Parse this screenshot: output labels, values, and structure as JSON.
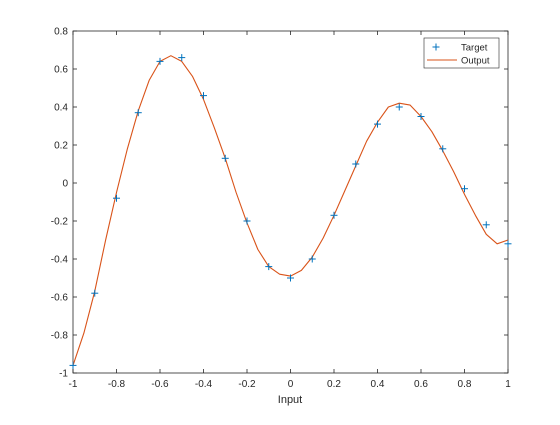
{
  "chart_data": {
    "type": "line",
    "title": "",
    "xlabel": "Input",
    "ylabel": "",
    "xlim": [
      -1,
      1
    ],
    "ylim": [
      -1,
      0.8
    ],
    "grid": false,
    "legend_position": "top-right",
    "x_ticks": [
      -1,
      -0.8,
      -0.6,
      -0.4,
      -0.2,
      0,
      0.2,
      0.4,
      0.6,
      0.8,
      1
    ],
    "x_tick_labels": [
      "-1",
      "-0.8",
      "-0.6",
      "-0.4",
      "-0.2",
      "0",
      "0.2",
      "0.4",
      "0.6",
      "0.8",
      "1"
    ],
    "y_ticks": [
      -1,
      -0.8,
      -0.6,
      -0.4,
      -0.2,
      0,
      0.2,
      0.4,
      0.6,
      0.8
    ],
    "y_tick_labels": [
      "-1",
      "-0.8",
      "-0.6",
      "-0.4",
      "-0.2",
      "0",
      "0.2",
      "0.4",
      "0.6",
      "0.8"
    ],
    "series": [
      {
        "name": "Target",
        "style": "markers",
        "marker": "plus",
        "color": "#0072BD",
        "x": [
          -1,
          -0.9,
          -0.8,
          -0.7,
          -0.6,
          -0.5,
          -0.4,
          -0.3,
          -0.2,
          -0.1,
          0,
          0.1,
          0.2,
          0.3,
          0.4,
          0.5,
          0.6,
          0.7,
          0.8,
          0.9,
          1
        ],
        "y": [
          -0.96,
          -0.58,
          -0.08,
          0.37,
          0.64,
          0.66,
          0.46,
          0.13,
          -0.2,
          -0.44,
          -0.5,
          -0.4,
          -0.17,
          0.1,
          0.31,
          0.4,
          0.35,
          0.18,
          -0.03,
          -0.22,
          -0.32
        ]
      },
      {
        "name": "Output",
        "style": "line",
        "color": "#D95319",
        "x": [
          -1,
          -0.95,
          -0.9,
          -0.85,
          -0.8,
          -0.75,
          -0.7,
          -0.65,
          -0.6,
          -0.55,
          -0.5,
          -0.45,
          -0.4,
          -0.35,
          -0.3,
          -0.25,
          -0.2,
          -0.15,
          -0.1,
          -0.05,
          0,
          0.05,
          0.1,
          0.15,
          0.2,
          0.25,
          0.3,
          0.35,
          0.4,
          0.45,
          0.5,
          0.55,
          0.6,
          0.65,
          0.7,
          0.75,
          0.8,
          0.85,
          0.9,
          0.95,
          1
        ],
        "y": [
          -0.96,
          -0.79,
          -0.57,
          -0.3,
          -0.05,
          0.18,
          0.38,
          0.54,
          0.64,
          0.67,
          0.64,
          0.56,
          0.44,
          0.29,
          0.13,
          -0.05,
          -0.21,
          -0.35,
          -0.44,
          -0.48,
          -0.49,
          -0.46,
          -0.39,
          -0.29,
          -0.17,
          -0.04,
          0.09,
          0.22,
          0.32,
          0.4,
          0.42,
          0.41,
          0.35,
          0.27,
          0.17,
          0.06,
          -0.06,
          -0.17,
          -0.27,
          -0.32,
          -0.3
        ]
      }
    ]
  }
}
